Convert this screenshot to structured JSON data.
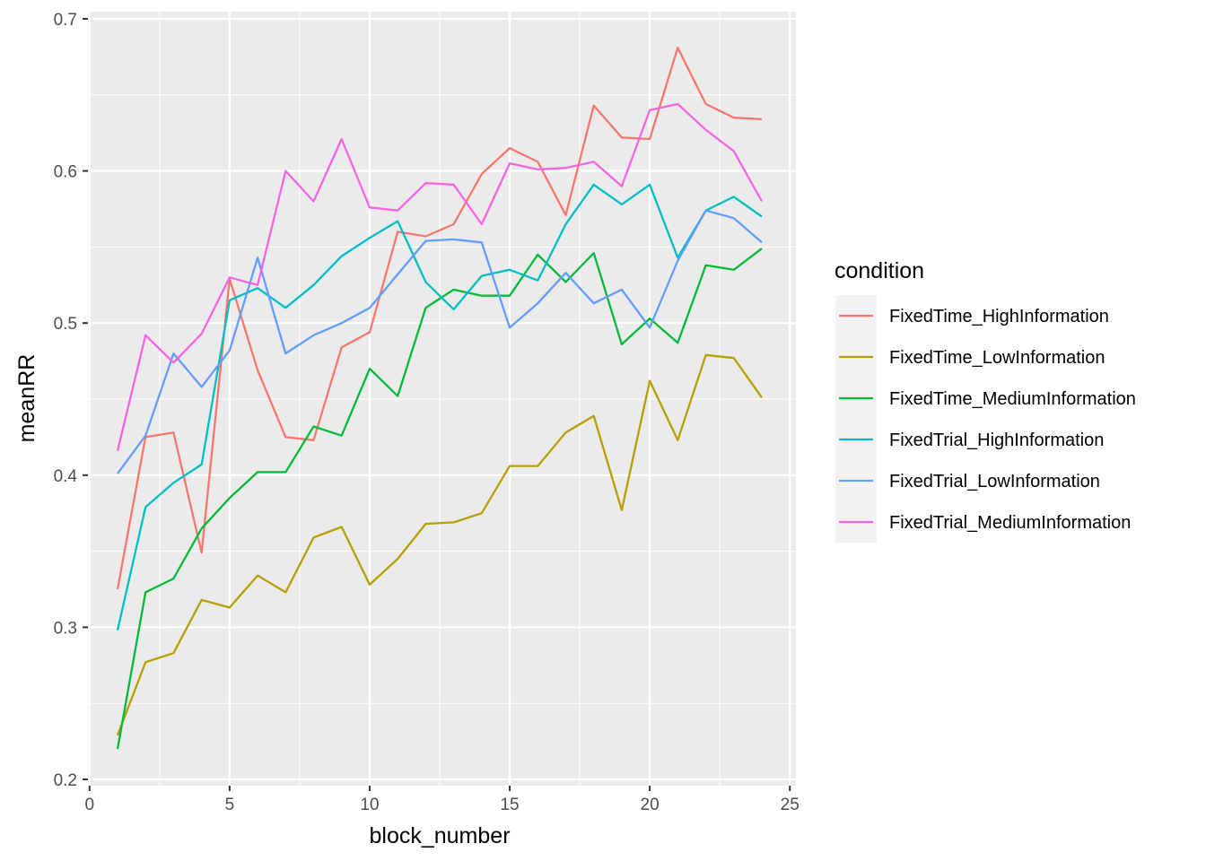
{
  "chart_data": {
    "type": "line",
    "xlabel": "block_number",
    "ylabel": "meanRR",
    "xlim": [
      0,
      25
    ],
    "ylim": [
      0.2,
      0.7
    ],
    "x_ticks": [
      0,
      5,
      10,
      15,
      20,
      25
    ],
    "x_tick_labels": [
      "0",
      "5",
      "10",
      "15",
      "20",
      "25"
    ],
    "y_ticks": [
      0.2,
      0.3,
      0.4,
      0.5,
      0.6,
      0.7
    ],
    "y_tick_labels": [
      "0.2",
      "0.3",
      "0.4",
      "0.5",
      "0.6",
      "0.7"
    ],
    "grid": true,
    "legend": {
      "title": "condition",
      "placement": "right"
    },
    "x": [
      1,
      2,
      3,
      4,
      5,
      6,
      7,
      8,
      9,
      10,
      11,
      12,
      13,
      14,
      15,
      16,
      17,
      18,
      19,
      20,
      21,
      22,
      23,
      24
    ],
    "series": [
      {
        "name": "FixedTime_HighInformation",
        "color": "#F8766D",
        "values": [
          0.325,
          0.425,
          0.428,
          0.349,
          0.529,
          0.469,
          0.425,
          0.423,
          0.484,
          0.494,
          0.56,
          0.557,
          0.565,
          0.598,
          0.615,
          0.606,
          0.571,
          0.643,
          0.622,
          0.621,
          0.681,
          0.644,
          0.635,
          0.634
        ]
      },
      {
        "name": "FixedTime_LowInformation",
        "color": "#B79F00",
        "values": [
          0.229,
          0.277,
          0.283,
          0.318,
          0.313,
          0.334,
          0.323,
          0.359,
          0.366,
          0.328,
          0.345,
          0.368,
          0.369,
          0.375,
          0.406,
          0.406,
          0.428,
          0.439,
          0.377,
          0.462,
          0.423,
          0.479,
          0.477,
          0.451
        ]
      },
      {
        "name": "FixedTime_MediumInformation",
        "color": "#00BA38",
        "values": [
          0.22,
          0.323,
          0.332,
          0.365,
          0.385,
          0.402,
          0.402,
          0.432,
          0.426,
          0.47,
          0.452,
          0.51,
          0.522,
          0.518,
          0.518,
          0.545,
          0.527,
          0.546,
          0.486,
          0.503,
          0.487,
          0.538,
          0.535,
          0.549
        ]
      },
      {
        "name": "FixedTrial_HighInformation",
        "color": "#00BFC4",
        "values": [
          0.298,
          0.379,
          0.395,
          0.407,
          0.515,
          0.523,
          0.51,
          0.525,
          0.544,
          0.556,
          0.567,
          0.527,
          0.509,
          0.531,
          0.535,
          0.528,
          0.565,
          0.591,
          0.578,
          0.591,
          0.543,
          0.574,
          0.583,
          0.57
        ]
      },
      {
        "name": "FixedTrial_LowInformation",
        "color": "#619CFF",
        "values": [
          0.401,
          0.426,
          0.48,
          0.458,
          0.482,
          0.543,
          0.48,
          0.492,
          0.5,
          0.51,
          0.532,
          0.554,
          0.555,
          0.553,
          0.497,
          0.513,
          0.533,
          0.513,
          0.522,
          0.497,
          0.541,
          0.574,
          0.569,
          0.553
        ]
      },
      {
        "name": "FixedTrial_MediumInformation",
        "color": "#F564E3",
        "values": [
          0.416,
          0.492,
          0.474,
          0.493,
          0.53,
          0.525,
          0.6,
          0.58,
          0.621,
          0.576,
          0.574,
          0.592,
          0.591,
          0.565,
          0.605,
          0.601,
          0.602,
          0.606,
          0.59,
          0.64,
          0.644,
          0.627,
          0.613,
          0.58
        ]
      }
    ]
  }
}
